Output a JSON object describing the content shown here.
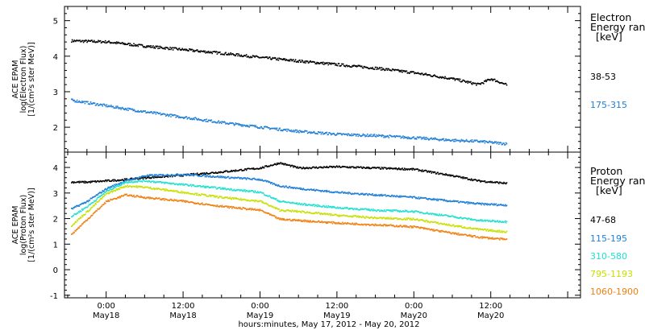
{
  "chart_data": [
    {
      "type": "scatter",
      "panel": "electron",
      "ylabel_lines": [
        "ACE EPAM",
        "log(Electron Flux)",
        "[1/(cm²s ster MeV)]"
      ],
      "ylim": [
        1.3,
        5.4
      ],
      "yticks": [
        "2",
        "3",
        "4",
        "5"
      ],
      "legend_title_lines": [
        "Electron",
        "Energy ranges",
        "[keV]"
      ],
      "series": [
        {
          "name": "38-53",
          "color": "#000000",
          "x": [
            -5.5,
            0,
            6,
            12,
            18,
            24,
            30,
            36,
            42,
            48,
            54,
            58,
            60,
            62.5
          ],
          "y": [
            4.45,
            4.42,
            4.3,
            4.2,
            4.1,
            3.98,
            3.88,
            3.78,
            3.68,
            3.55,
            3.38,
            3.22,
            3.38,
            3.2
          ]
        },
        {
          "name": "175-315",
          "color": "#1f7fd6",
          "x": [
            -5.5,
            0,
            6,
            12,
            18,
            24,
            30,
            36,
            42,
            48,
            54,
            58,
            62.5
          ],
          "y": [
            2.78,
            2.62,
            2.45,
            2.3,
            2.15,
            2.02,
            1.9,
            1.82,
            1.78,
            1.72,
            1.65,
            1.62,
            1.55
          ]
        }
      ]
    },
    {
      "type": "scatter",
      "panel": "proton",
      "ylabel_lines": [
        "ACE EPAM",
        "log(Proton Flux)",
        "[1/(cm²s ster MeV)]"
      ],
      "ylim": [
        -1.1,
        4.6
      ],
      "yticks": [
        "-1",
        "0",
        "1",
        "2",
        "3",
        "4"
      ],
      "legend_title_lines": [
        "Proton",
        "Energy ranges",
        "[keV]"
      ],
      "series": [
        {
          "name": "47-68",
          "color": "#000000",
          "x": [
            -5.5,
            -3,
            0,
            3,
            6,
            12,
            18,
            24,
            27,
            30,
            36,
            42,
            48,
            54,
            58,
            62.5
          ],
          "y": [
            3.45,
            3.45,
            3.5,
            3.55,
            3.62,
            3.72,
            3.85,
            4.0,
            4.2,
            4.0,
            4.05,
            4.0,
            3.95,
            3.7,
            3.5,
            3.4
          ]
        },
        {
          "name": "115-195",
          "color": "#1f7fd6",
          "x": [
            -5.5,
            -3,
            0,
            3,
            6,
            12,
            18,
            24,
            27,
            30,
            36,
            42,
            48,
            54,
            58,
            62.5
          ],
          "y": [
            2.4,
            2.7,
            3.2,
            3.5,
            3.7,
            3.75,
            3.65,
            3.55,
            3.3,
            3.2,
            3.05,
            2.95,
            2.85,
            2.7,
            2.6,
            2.55
          ]
        },
        {
          "name": "310-580",
          "color": "#22e0d0",
          "x": [
            -5.5,
            -3,
            0,
            3,
            6,
            12,
            18,
            24,
            27,
            30,
            36,
            42,
            48,
            54,
            58,
            62.5
          ],
          "y": [
            2.1,
            2.5,
            3.1,
            3.45,
            3.5,
            3.35,
            3.2,
            3.05,
            2.7,
            2.6,
            2.45,
            2.35,
            2.3,
            2.1,
            1.95,
            1.9
          ]
        },
        {
          "name": "795-1193",
          "color": "#c8e000",
          "x": [
            -5.5,
            -3,
            0,
            3,
            6,
            12,
            18,
            24,
            27,
            30,
            36,
            42,
            48,
            54,
            58,
            62.5
          ],
          "y": [
            1.75,
            2.3,
            3.0,
            3.3,
            3.25,
            3.05,
            2.85,
            2.7,
            2.35,
            2.3,
            2.15,
            2.05,
            2.0,
            1.75,
            1.6,
            1.5
          ]
        },
        {
          "name": "1060-1900",
          "color": "#f08010",
          "x": [
            -5.5,
            -3,
            0,
            3,
            6,
            12,
            18,
            24,
            27,
            30,
            36,
            42,
            48,
            54,
            58,
            62.5
          ],
          "y": [
            1.4,
            2.0,
            2.7,
            2.95,
            2.85,
            2.7,
            2.5,
            2.35,
            2.0,
            1.95,
            1.85,
            1.78,
            1.7,
            1.45,
            1.3,
            1.2
          ]
        }
      ]
    }
  ],
  "x_axis": {
    "range_hours": [
      -6.5,
      74
    ],
    "ticks": [
      {
        "hour": 0,
        "time": "0:00",
        "date": "May18"
      },
      {
        "hour": 12,
        "time": "12:00",
        "date": "May18"
      },
      {
        "hour": 24,
        "time": "0:00",
        "date": "May19"
      },
      {
        "hour": 36,
        "time": "12:00",
        "date": "May19"
      },
      {
        "hour": 48,
        "time": "0:00",
        "date": "May20"
      },
      {
        "hour": 60,
        "time": "12:00",
        "date": "May20"
      }
    ],
    "label": "hours:minutes, May 17, 2012 - May 20, 2012"
  }
}
